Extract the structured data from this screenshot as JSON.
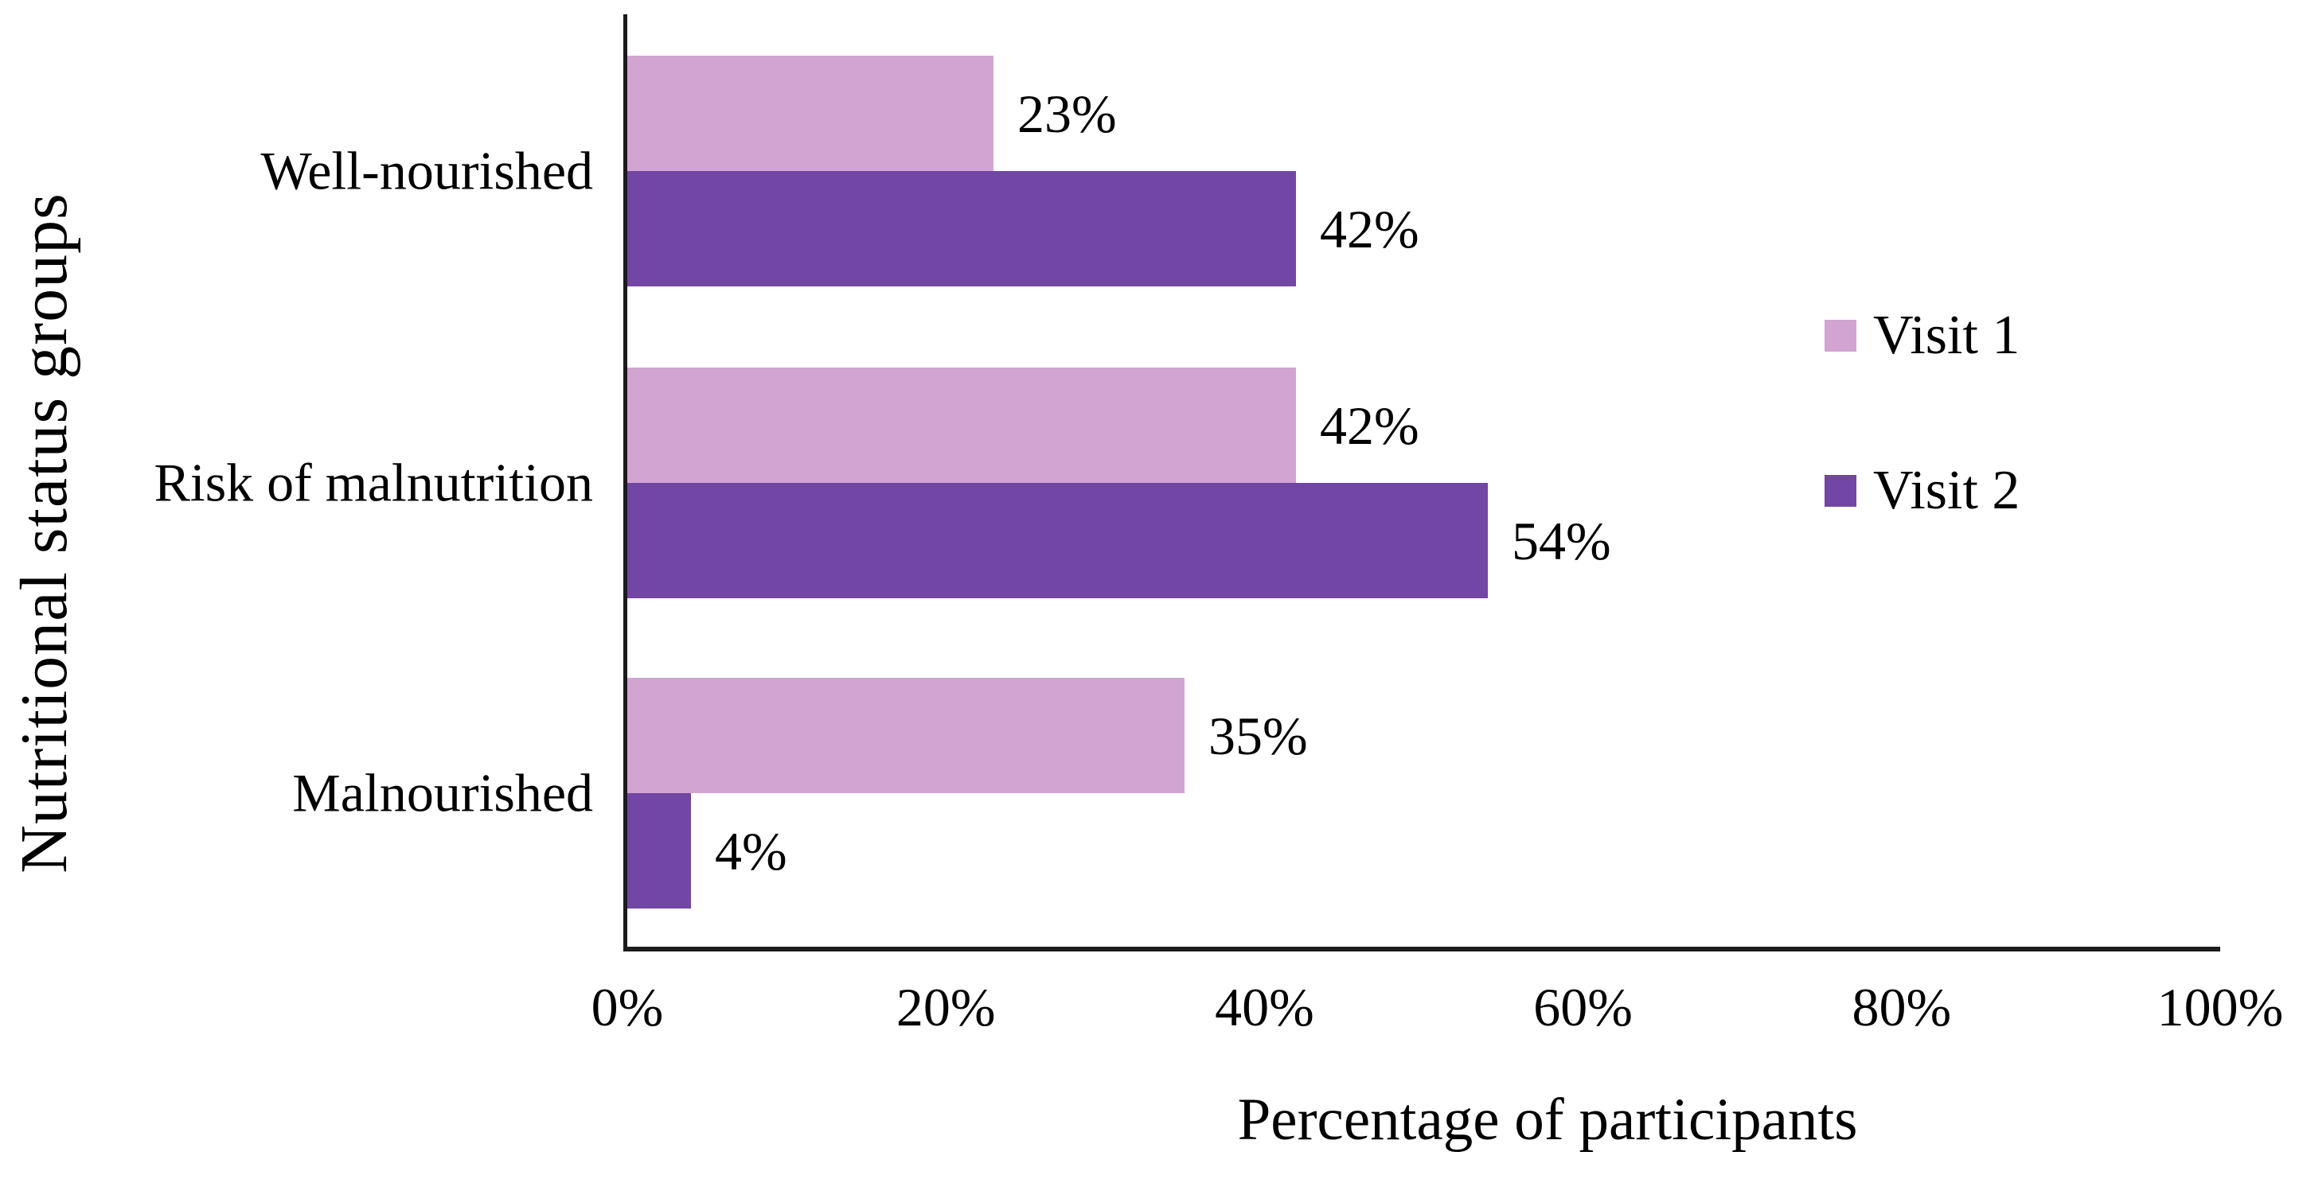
{
  "chart_data": {
    "type": "bar",
    "orientation": "horizontal",
    "xlabel": "Percentage of participants",
    "ylabel": "Nutritional status groups",
    "categories": [
      "Well-nourished",
      "Risk of malnutrition",
      "Malnourished"
    ],
    "series": [
      {
        "name": "Visit 1",
        "color": "#d1a4d2",
        "values": [
          23,
          42,
          35
        ],
        "labels": [
          "23%",
          "42%",
          "35%"
        ]
      },
      {
        "name": "Visit 2",
        "color": "#7246a4",
        "values": [
          42,
          54,
          4
        ],
        "labels": [
          "42%",
          "54%",
          "4%"
        ]
      }
    ],
    "x_ticks": [
      {
        "value": 0,
        "label": "0%"
      },
      {
        "value": 20,
        "label": "20%"
      },
      {
        "value": 40,
        "label": "40%"
      },
      {
        "value": 60,
        "label": "60%"
      },
      {
        "value": 80,
        "label": "80%"
      },
      {
        "value": 100,
        "label": "100%"
      }
    ],
    "xlim": [
      0,
      100
    ],
    "grid": false,
    "legend_position": "right",
    "axis_color": "#1c1c1c",
    "text_color": "#000000",
    "background_color": "#ffffff"
  }
}
